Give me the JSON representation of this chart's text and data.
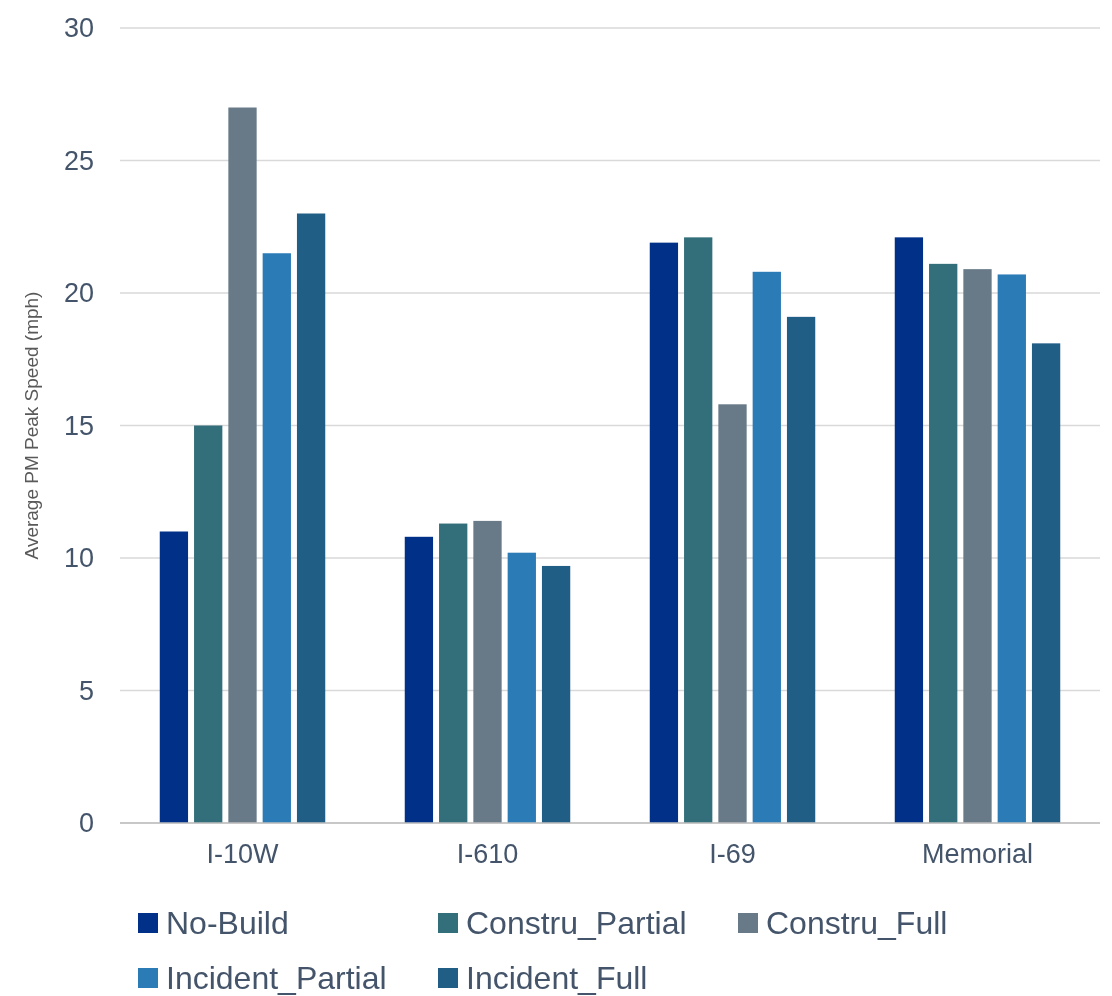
{
  "chart_data": {
    "type": "bar",
    "ylabel": "Average PM Peak Speed (mph)",
    "categories": [
      "I-10W",
      "I-610",
      "I-69",
      "Memorial"
    ],
    "series": [
      {
        "name": "No-Build",
        "color": "#003087",
        "values": [
          11.0,
          10.8,
          21.9,
          22.1
        ]
      },
      {
        "name": "Constru_Partial",
        "color": "#336f7a",
        "values": [
          15.0,
          11.3,
          22.1,
          21.1
        ]
      },
      {
        "name": "Constru_Full",
        "color": "#687a87",
        "values": [
          27.0,
          11.4,
          15.8,
          20.9
        ]
      },
      {
        "name": "Incident_Partial",
        "color": "#2b7bb6",
        "values": [
          21.5,
          10.2,
          20.8,
          20.7
        ]
      },
      {
        "name": "Incident_Full",
        "color": "#215e86",
        "values": [
          23.0,
          9.7,
          19.1,
          18.1
        ]
      }
    ],
    "ylim": [
      0,
      30
    ],
    "yticks": [
      0,
      5,
      10,
      15,
      20,
      25,
      30
    ],
    "grid": "y",
    "legend": "bottom"
  }
}
